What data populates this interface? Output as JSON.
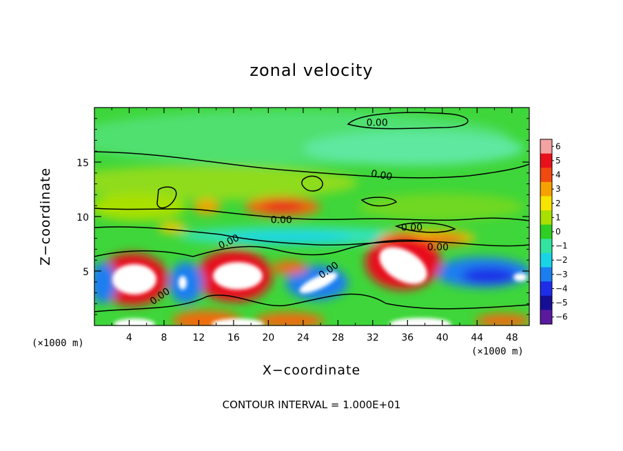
{
  "chart_data": {
    "type": "heatmap",
    "title": "zonal velocity",
    "xlabel": "X−coordinate",
    "ylabel": "Z−coordinate",
    "x_units_left": "(×1000 m)",
    "x_units_right": "(×1000 m)",
    "xlim": [
      0,
      50
    ],
    "ylim": [
      0,
      20
    ],
    "x_ticks": [
      4,
      8,
      12,
      16,
      20,
      24,
      28,
      32,
      36,
      40,
      44,
      48
    ],
    "x_tick_labels": [
      "4",
      "8",
      "12",
      "16",
      "20",
      "24",
      "28",
      "32",
      "36",
      "40",
      "44",
      "48"
    ],
    "y_ticks": [
      5,
      10,
      15
    ],
    "y_tick_labels": [
      "5",
      "10",
      "15"
    ],
    "colorbar": {
      "min": -6,
      "max": 6,
      "labels": [
        "6",
        "5",
        "4",
        "3",
        "2",
        "1",
        "0",
        "−1",
        "−2",
        "−3",
        "−4",
        "−5",
        "−6"
      ],
      "colors": [
        "#f4a3a3",
        "#e8101a",
        "#f04a10",
        "#f6a100",
        "#f7e400",
        "#a9e000",
        "#2ccf22",
        "#33e3a0",
        "#19d4e6",
        "#1b7ef0",
        "#1e2ee8",
        "#160f96",
        "#5a1aa0"
      ]
    },
    "contour_labels": [
      "0.00",
      "0.00",
      "0.00",
      "0.00",
      "0.00",
      "0.00",
      "0.00",
      "0.00"
    ],
    "contour_interval": "CONTOUR INTERVAL = 1.000E+01",
    "features": [
      {
        "x": 5,
        "z": 4.5,
        "value": 6
      },
      {
        "x": 16.5,
        "z": 4.6,
        "value": 6
      },
      {
        "x": 36,
        "z": 5.5,
        "value": 6
      },
      {
        "x": 26,
        "z": 3.2,
        "value": -4
      },
      {
        "x": 20.5,
        "z": 11,
        "value": 3
      },
      {
        "x": 45,
        "z": 4.5,
        "value": -4
      },
      {
        "x": 11,
        "z": 3,
        "value": -4
      },
      {
        "x": 19,
        "z": 8.5,
        "value": -2
      },
      {
        "x": 5,
        "z": 0.3,
        "value": 6
      },
      {
        "x": 16,
        "z": 0.3,
        "value": 6
      },
      {
        "x": 36,
        "z": 0.3,
        "value": 6
      }
    ]
  }
}
